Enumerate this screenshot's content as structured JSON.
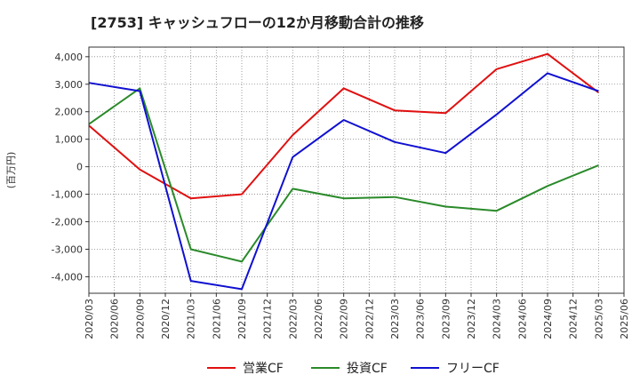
{
  "chart_data": {
    "type": "line",
    "title": "[2753]  キャッシュフローの12か月移動合計の推移",
    "ylabel": "(百万円)",
    "xlabel": "",
    "ylim": [
      -4600,
      4350
    ],
    "yticks": [
      4000,
      3000,
      2000,
      1000,
      0,
      -1000,
      -2000,
      -3000,
      -4000
    ],
    "ytick_labels": [
      "4,000",
      "3,000",
      "2,000",
      "1,000",
      "0",
      "-1,000",
      "-2,000",
      "-3,000",
      "-4,000"
    ],
    "x_categories": [
      "2020/03",
      "2020/06",
      "2020/09",
      "2020/12",
      "2021/03",
      "2021/06",
      "2021/09",
      "2021/12",
      "2022/03",
      "2022/06",
      "2022/09",
      "2022/12",
      "2023/03",
      "2023/06",
      "2023/09",
      "2023/12",
      "2024/03",
      "2024/06",
      "2024/09",
      "2024/12",
      "2025/03",
      "2025/06"
    ],
    "grid": true,
    "legend_position": "bottom",
    "series": [
      {
        "name": "営業CF",
        "color": "#e01010",
        "points": [
          {
            "x": "2020/03",
            "y": 1500
          },
          {
            "x": "2020/09",
            "y": -100
          },
          {
            "x": "2021/03",
            "y": -1150
          },
          {
            "x": "2021/09",
            "y": -1000
          },
          {
            "x": "2022/03",
            "y": 1150
          },
          {
            "x": "2022/09",
            "y": 2850
          },
          {
            "x": "2023/03",
            "y": 2050
          },
          {
            "x": "2023/09",
            "y": 1950
          },
          {
            "x": "2024/03",
            "y": 3550
          },
          {
            "x": "2024/09",
            "y": 4100
          },
          {
            "x": "2025/03",
            "y": 2700
          }
        ]
      },
      {
        "name": "投資CF",
        "color": "#2a8a2a",
        "points": [
          {
            "x": "2020/03",
            "y": 1550
          },
          {
            "x": "2020/09",
            "y": 2850
          },
          {
            "x": "2021/03",
            "y": -3000
          },
          {
            "x": "2021/09",
            "y": -3450
          },
          {
            "x": "2022/03",
            "y": -800
          },
          {
            "x": "2022/09",
            "y": -1150
          },
          {
            "x": "2023/03",
            "y": -1100
          },
          {
            "x": "2023/09",
            "y": -1450
          },
          {
            "x": "2024/03",
            "y": -1600
          },
          {
            "x": "2024/09",
            "y": -700
          },
          {
            "x": "2025/03",
            "y": 50
          }
        ]
      },
      {
        "name": "フリーCF",
        "color": "#1010d0",
        "points": [
          {
            "x": "2020/03",
            "y": 3050
          },
          {
            "x": "2020/09",
            "y": 2750
          },
          {
            "x": "2021/03",
            "y": -4150
          },
          {
            "x": "2021/09",
            "y": -4450
          },
          {
            "x": "2022/03",
            "y": 350
          },
          {
            "x": "2022/09",
            "y": 1700
          },
          {
            "x": "2023/03",
            "y": 900
          },
          {
            "x": "2023/09",
            "y": 500
          },
          {
            "x": "2024/03",
            "y": 1900
          },
          {
            "x": "2024/09",
            "y": 3400
          },
          {
            "x": "2025/03",
            "y": 2750
          }
        ]
      }
    ]
  }
}
